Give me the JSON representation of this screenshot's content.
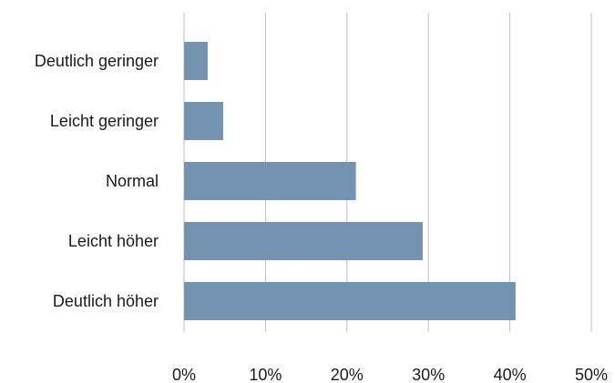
{
  "chart_data": {
    "type": "bar",
    "orientation": "horizontal",
    "categories": [
      "Deutlich geringer",
      "Leicht geringer",
      "Normal",
      "Leicht höher",
      "Deutlich höher"
    ],
    "values": [
      2.9,
      4.8,
      21.1,
      29.3,
      40.7
    ],
    "x_ticks": [
      "0%",
      "10%",
      "20%",
      "30%",
      "40%",
      "50%"
    ],
    "xlim": [
      0,
      50
    ],
    "grid": "vertical",
    "legend": "none",
    "bar_color": "#7393b0"
  }
}
